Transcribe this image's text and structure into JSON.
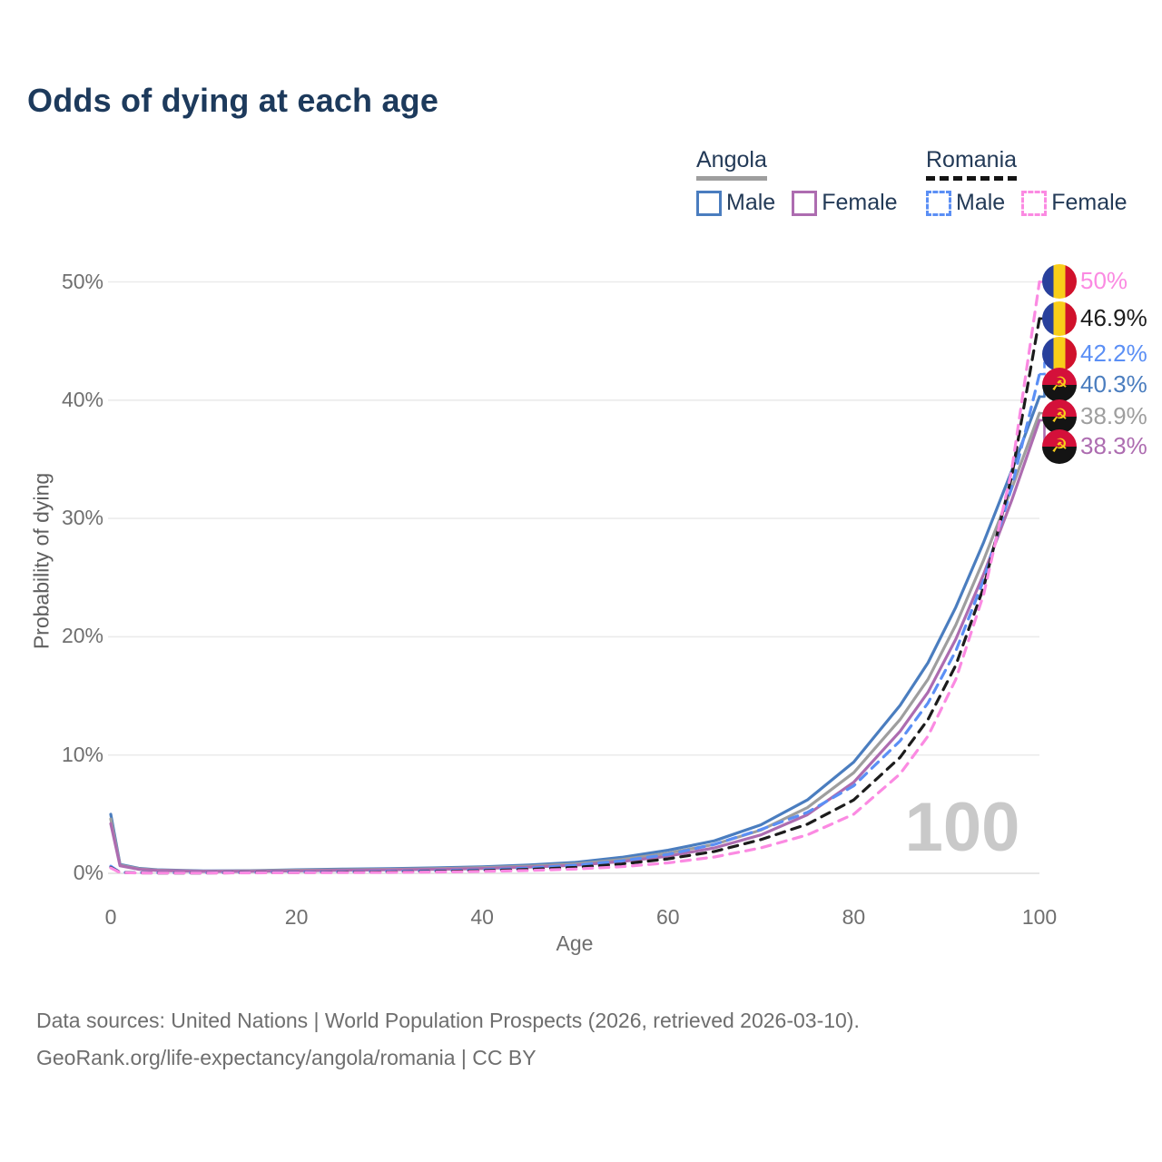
{
  "title": "Odds of dying at each age",
  "legend": {
    "groups": [
      {
        "label": "Angola",
        "line_style": "solid",
        "line_color": "#9e9e9e",
        "items": [
          {
            "label": "Male",
            "color": "#4a7dbf",
            "style": "solid"
          },
          {
            "label": "Female",
            "color": "#ad6cb0",
            "style": "solid"
          }
        ]
      },
      {
        "label": "Romania",
        "line_style": "dashed",
        "line_color": "#141414",
        "items": [
          {
            "label": "Male",
            "color": "#5b8ff5",
            "style": "dashed"
          },
          {
            "label": "Female",
            "color": "#fb8ae2",
            "style": "dashed"
          }
        ]
      }
    ]
  },
  "chart_data": {
    "type": "line",
    "title": "Odds of dying at each age",
    "xlabel": "Age",
    "ylabel": "Probability of dying",
    "xlim": [
      0,
      100
    ],
    "ylim": [
      0,
      50
    ],
    "x_ticks": [
      0,
      20,
      40,
      60,
      80,
      100
    ],
    "y_ticks": [
      "0%",
      "10%",
      "20%",
      "30%",
      "40%",
      "50%"
    ],
    "grid": "horizontal",
    "legend_position": "top-right",
    "age_watermark": "100",
    "series": [
      {
        "name": "Angola male",
        "country": "Angola",
        "sex": "Male",
        "flag": "angola",
        "color": "#4a7dbf",
        "dashed": false,
        "end_label": "40.3%",
        "end_pct": 40.3,
        "points": [
          [
            0,
            5.0
          ],
          [
            1,
            0.75
          ],
          [
            3,
            0.42
          ],
          [
            5,
            0.3
          ],
          [
            10,
            0.2
          ],
          [
            15,
            0.22
          ],
          [
            20,
            0.3
          ],
          [
            25,
            0.35
          ],
          [
            30,
            0.4
          ],
          [
            35,
            0.46
          ],
          [
            40,
            0.55
          ],
          [
            45,
            0.7
          ],
          [
            50,
            0.92
          ],
          [
            55,
            1.35
          ],
          [
            60,
            1.95
          ],
          [
            65,
            2.75
          ],
          [
            70,
            4.1
          ],
          [
            75,
            6.2
          ],
          [
            80,
            9.4
          ],
          [
            85,
            14.2
          ],
          [
            88,
            17.8
          ],
          [
            91,
            22.5
          ],
          [
            94,
            28.0
          ],
          [
            97,
            34.0
          ],
          [
            100,
            40.3
          ]
        ]
      },
      {
        "name": "Angola both sexes",
        "country": "Angola",
        "sex": "Both",
        "flag": "angola",
        "color": "#9e9e9e",
        "dashed": false,
        "end_label": "38.9%",
        "end_pct": 38.9,
        "points": [
          [
            0,
            4.6
          ],
          [
            1,
            0.7
          ],
          [
            3,
            0.38
          ],
          [
            5,
            0.27
          ],
          [
            10,
            0.18
          ],
          [
            15,
            0.2
          ],
          [
            20,
            0.26
          ],
          [
            25,
            0.3
          ],
          [
            30,
            0.34
          ],
          [
            35,
            0.4
          ],
          [
            40,
            0.48
          ],
          [
            45,
            0.61
          ],
          [
            50,
            0.8
          ],
          [
            55,
            1.17
          ],
          [
            60,
            1.7
          ],
          [
            65,
            2.45
          ],
          [
            70,
            3.65
          ],
          [
            75,
            5.55
          ],
          [
            80,
            8.5
          ],
          [
            85,
            13.0
          ],
          [
            88,
            16.4
          ],
          [
            91,
            21.0
          ],
          [
            94,
            26.5
          ],
          [
            97,
            32.5
          ],
          [
            100,
            38.9
          ]
        ]
      },
      {
        "name": "Angola female",
        "country": "Angola",
        "sex": "Female",
        "flag": "angola",
        "color": "#ad6cb0",
        "dashed": false,
        "end_label": "38.3%",
        "end_pct": 38.3,
        "points": [
          [
            0,
            4.2
          ],
          [
            1,
            0.64
          ],
          [
            3,
            0.34
          ],
          [
            5,
            0.24
          ],
          [
            10,
            0.16
          ],
          [
            15,
            0.17
          ],
          [
            20,
            0.21
          ],
          [
            25,
            0.25
          ],
          [
            30,
            0.29
          ],
          [
            35,
            0.34
          ],
          [
            40,
            0.41
          ],
          [
            45,
            0.52
          ],
          [
            50,
            0.68
          ],
          [
            55,
            1.0
          ],
          [
            60,
            1.45
          ],
          [
            65,
            2.15
          ],
          [
            70,
            3.25
          ],
          [
            75,
            4.95
          ],
          [
            80,
            7.7
          ],
          [
            85,
            12.0
          ],
          [
            88,
            15.3
          ],
          [
            91,
            19.8
          ],
          [
            94,
            25.3
          ],
          [
            97,
            31.5
          ],
          [
            100,
            38.3
          ]
        ]
      },
      {
        "name": "Romania male",
        "country": "Romania",
        "sex": "Male",
        "flag": "romania",
        "color": "#5b8ff5",
        "dashed": true,
        "end_label": "42.2%",
        "end_pct": 42.2,
        "points": [
          [
            0,
            0.6
          ],
          [
            1,
            0.08
          ],
          [
            3,
            0.05
          ],
          [
            5,
            0.04
          ],
          [
            10,
            0.04
          ],
          [
            15,
            0.07
          ],
          [
            20,
            0.1
          ],
          [
            25,
            0.12
          ],
          [
            30,
            0.15
          ],
          [
            35,
            0.2
          ],
          [
            40,
            0.29
          ],
          [
            45,
            0.44
          ],
          [
            50,
            0.68
          ],
          [
            55,
            1.05
          ],
          [
            60,
            1.6
          ],
          [
            65,
            2.45
          ],
          [
            70,
            3.7
          ],
          [
            75,
            5.15
          ],
          [
            80,
            7.4
          ],
          [
            85,
            11.2
          ],
          [
            88,
            14.4
          ],
          [
            91,
            18.8
          ],
          [
            94,
            24.8
          ],
          [
            97,
            32.6
          ],
          [
            100,
            42.2
          ]
        ]
      },
      {
        "name": "Romania both sexes",
        "country": "Romania",
        "sex": "Both",
        "flag": "romania",
        "color": "#1c1c1c",
        "dashed": true,
        "end_label": "46.9%",
        "end_pct": 46.9,
        "points": [
          [
            0,
            0.5
          ],
          [
            1,
            0.07
          ],
          [
            3,
            0.04
          ],
          [
            5,
            0.03
          ],
          [
            10,
            0.03
          ],
          [
            15,
            0.05
          ],
          [
            20,
            0.07
          ],
          [
            25,
            0.09
          ],
          [
            30,
            0.11
          ],
          [
            35,
            0.15
          ],
          [
            40,
            0.22
          ],
          [
            45,
            0.33
          ],
          [
            50,
            0.5
          ],
          [
            55,
            0.78
          ],
          [
            60,
            1.22
          ],
          [
            65,
            1.85
          ],
          [
            70,
            2.85
          ],
          [
            75,
            4.15
          ],
          [
            80,
            6.2
          ],
          [
            85,
            9.8
          ],
          [
            88,
            13.0
          ],
          [
            91,
            17.6
          ],
          [
            94,
            24.2
          ],
          [
            97,
            33.5
          ],
          [
            100,
            46.9
          ]
        ]
      },
      {
        "name": "Romania female",
        "country": "Romania",
        "sex": "Female",
        "flag": "romania",
        "color": "#fb8ae2",
        "dashed": true,
        "end_label": "50%",
        "end_pct": 50.0,
        "points": [
          [
            0,
            0.45
          ],
          [
            1,
            0.06
          ],
          [
            3,
            0.03
          ],
          [
            5,
            0.025
          ],
          [
            10,
            0.025
          ],
          [
            15,
            0.04
          ],
          [
            20,
            0.05
          ],
          [
            25,
            0.06
          ],
          [
            30,
            0.08
          ],
          [
            35,
            0.11
          ],
          [
            40,
            0.16
          ],
          [
            45,
            0.24
          ],
          [
            50,
            0.36
          ],
          [
            55,
            0.56
          ],
          [
            60,
            0.88
          ],
          [
            65,
            1.38
          ],
          [
            70,
            2.15
          ],
          [
            75,
            3.25
          ],
          [
            80,
            5.0
          ],
          [
            85,
            8.4
          ],
          [
            88,
            11.6
          ],
          [
            91,
            16.4
          ],
          [
            94,
            23.6
          ],
          [
            97,
            34.0
          ],
          [
            100,
            50.0
          ]
        ]
      }
    ]
  },
  "footer": {
    "line1": "Data sources: United Nations | World Population Prospects (2026, retrieved 2026-03-10).",
    "line2": "GeoRank.org/life-expectancy/angola/romania | CC BY"
  }
}
